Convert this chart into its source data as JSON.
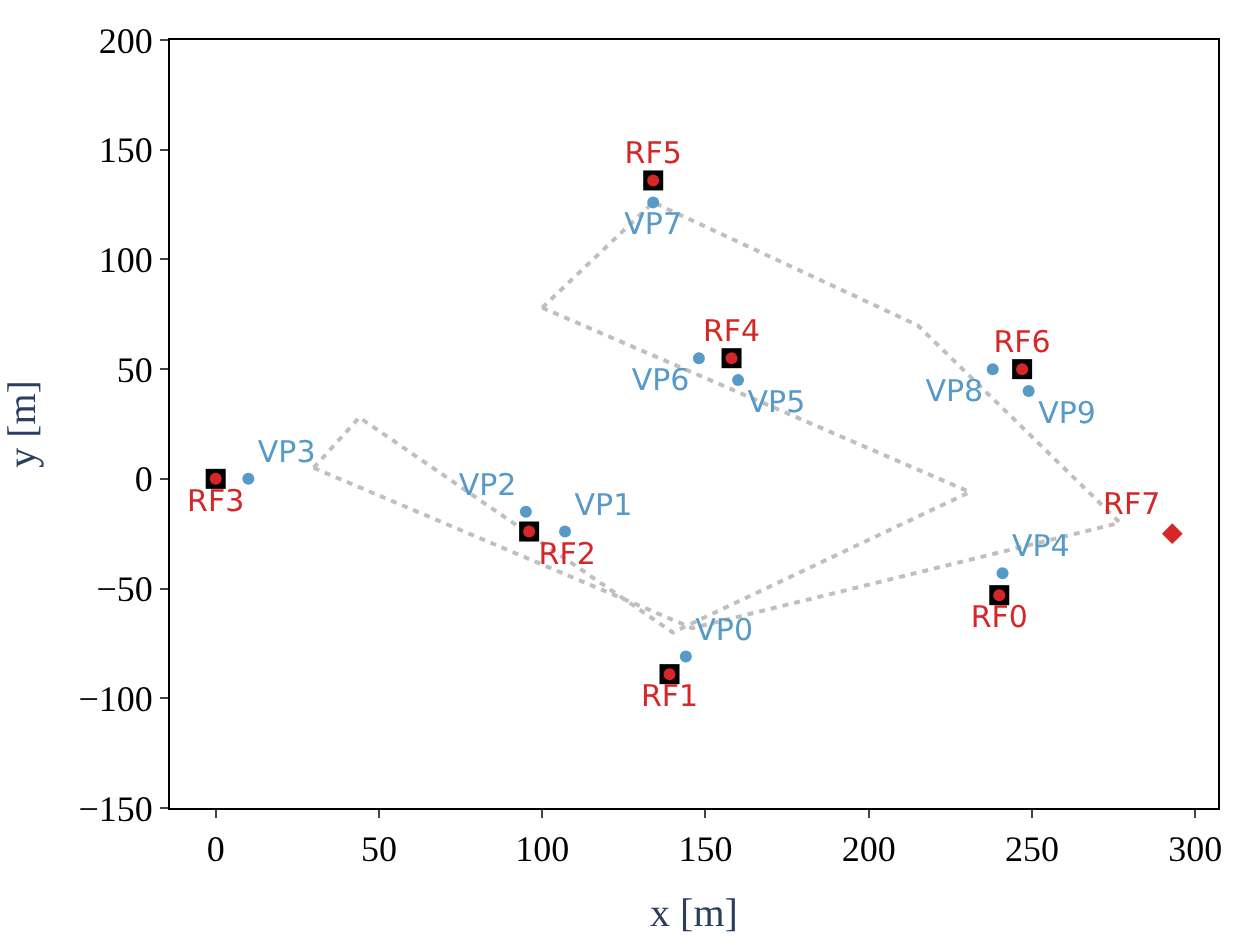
{
  "chart_data": {
    "type": "scatter",
    "xlabel": "x [m]",
    "ylabel": "y [m]",
    "xlim": [
      -14,
      307
    ],
    "ylim": [
      -150,
      200
    ],
    "xticks": [
      0,
      50,
      100,
      150,
      200,
      250,
      300
    ],
    "yticks": [
      -150,
      -100,
      -50,
      0,
      50,
      100,
      150,
      200
    ],
    "grid": false,
    "series": [
      {
        "type": "line",
        "line_style": "dotted",
        "marker": "none",
        "color": "#bfbfbf",
        "x": [
          30,
          44,
          140,
          231
        ],
        "values": [
          5,
          28,
          -70,
          -6
        ]
      },
      {
        "type": "line",
        "line_style": "dotted",
        "marker": "none",
        "color": "#bfbfbf",
        "x": [
          100,
          231
        ],
        "values": [
          78,
          -6
        ]
      },
      {
        "type": "line",
        "line_style": "dotted",
        "marker": "none",
        "color": "#bfbfbf",
        "x": [
          100,
          134,
          215,
          277
        ],
        "values": [
          78,
          126,
          70,
          -20
        ]
      },
      {
        "type": "line",
        "line_style": "dotted",
        "marker": "none",
        "color": "#bfbfbf",
        "x": [
          30,
          146,
          277
        ],
        "values": [
          5,
          -68,
          -20
        ]
      },
      {
        "marker": "circle",
        "color": "#5799c7",
        "x": [
          144,
          107,
          95,
          10,
          241,
          160,
          148,
          134,
          238,
          249
        ],
        "values": [
          -81,
          -24,
          -15,
          0,
          -43,
          45,
          55,
          126,
          50,
          40
        ],
        "value_labels": [
          "VP0",
          "VP1",
          "VP2",
          "VP3",
          "VP4",
          "VP5",
          "VP6",
          "VP7",
          "VP8",
          "VP9"
        ]
      },
      {
        "marker": "square",
        "color": "#000000",
        "x": [
          240,
          139,
          96,
          0,
          158,
          134,
          247
        ],
        "values": [
          -53,
          -89,
          -24,
          0,
          55,
          136,
          50
        ]
      },
      {
        "marker": "circle",
        "color": "#d62728",
        "x": [
          240,
          139,
          96,
          0,
          158,
          134,
          247
        ],
        "values": [
          -53,
          -89,
          -24,
          0,
          55,
          136,
          50
        ],
        "value_labels": [
          "RF0",
          "RF1",
          "RF2",
          "RF3",
          "RF4",
          "RF5",
          "RF6"
        ]
      },
      {
        "marker": "diamond",
        "color": "#d62728",
        "x": [
          293
        ],
        "values": [
          -25
        ],
        "value_labels": [
          "RF7"
        ]
      }
    ]
  }
}
